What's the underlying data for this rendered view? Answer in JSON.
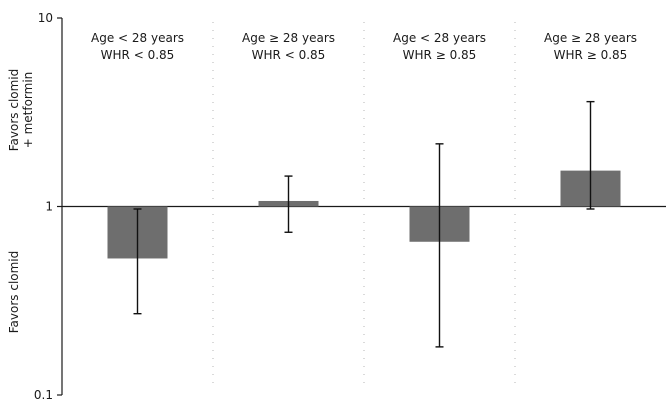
{
  "chart_data": {
    "type": "bar",
    "scale": "log",
    "ylim": [
      0.1,
      10
    ],
    "baseline": 1,
    "y_ticks": [
      {
        "value": 10,
        "label": "10"
      },
      {
        "value": 1,
        "label": "1"
      },
      {
        "value": 0.1,
        "label": "0.1"
      }
    ],
    "side_labels": {
      "upper": [
        "Favors clomid",
        "+ metformin"
      ],
      "lower": [
        "Favors clomid"
      ]
    },
    "categories": [
      {
        "line1": "Age < 28 years",
        "line2": "WHR < 0.85"
      },
      {
        "line1": "Age  ≥ 28 years",
        "line2": "WHR < 0.85"
      },
      {
        "line1": "Age < 28 years",
        "line2": "WHR   ≥ 0.85"
      },
      {
        "line1": "Age  ≥ 28 years",
        "line2": "WHR   ≥ 0.85"
      }
    ],
    "values": [
      0.53,
      1.07,
      0.65,
      1.55
    ],
    "ci_lower": [
      0.27,
      0.73,
      0.18,
      0.97
    ],
    "ci_upper": [
      0.97,
      1.45,
      2.15,
      3.6
    ],
    "colors": {
      "bar": "#6e6e6e",
      "axis": "#1a1a1a",
      "divider": "#b5b5b5"
    }
  }
}
